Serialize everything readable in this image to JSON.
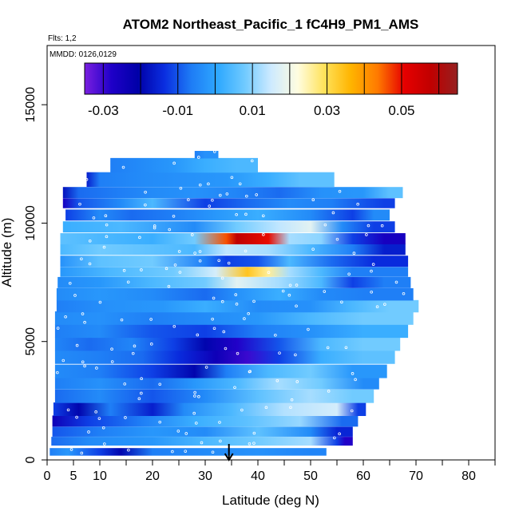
{
  "chart_data": {
    "type": "heatmap",
    "title": "ATOM2 Northeast_Pacific_1 fC4H9_PM1_AMS",
    "flights_note": "Flts: 1,2",
    "date_note": "MMDD: 0126,0129",
    "xlabel": "Latitude (deg N)",
    "ylabel": "Altitude (m)",
    "xlim": [
      0,
      85
    ],
    "ylim": [
      0,
      17500
    ],
    "x_tick_labels": [
      "0",
      "5",
      "10",
      "20",
      "30",
      "40",
      "50",
      "60",
      "70",
      "80"
    ],
    "y_tick_labels": [
      "0",
      "5000",
      "10000",
      "15000"
    ],
    "colorbar": {
      "range": [
        -0.035,
        0.065
      ],
      "tick_labels": [
        "-0.03",
        "-0.01",
        "0.01",
        "0.03",
        "0.05"
      ],
      "tick_values": [
        -0.03,
        -0.01,
        0.01,
        0.03,
        0.05
      ],
      "colors": [
        "#7a1fe0",
        "#1f00c8",
        "#0000a8",
        "#0a2ee0",
        "#1e7cf5",
        "#2ea8ff",
        "#6fcaff",
        "#cdeaff",
        "#fffde0",
        "#ffe25a",
        "#ffb400",
        "#ff7a00",
        "#e60000",
        "#c00000",
        "#952020"
      ]
    },
    "arrow_latitude": 34.5,
    "bands": [
      {
        "alt": 350,
        "h": 300,
        "lat_min": 0.5,
        "lat_max": 53,
        "segments": [
          [
            0.5,
            -0.006
          ],
          [
            4,
            -0.002
          ],
          [
            10,
            -0.012
          ],
          [
            14,
            -0.02
          ],
          [
            20,
            -0.006
          ],
          [
            30,
            -0.004
          ],
          [
            40,
            -0.003
          ],
          [
            50,
            -0.005
          ]
        ]
      },
      {
        "alt": 800,
        "h": 350,
        "lat_min": 0.8,
        "lat_max": 58,
        "segments": [
          [
            0.8,
            -0.008
          ],
          [
            8,
            -0.004
          ],
          [
            20,
            -0.002
          ],
          [
            30,
            0.004
          ],
          [
            40,
            0.008
          ],
          [
            50,
            0.012
          ],
          [
            55,
            -0.012
          ],
          [
            56.5,
            -0.028
          ]
        ]
      },
      {
        "alt": 1200,
        "h": 400,
        "lat_min": 1,
        "lat_max": 58,
        "segments": [
          [
            1,
            -0.01
          ],
          [
            10,
            -0.006
          ],
          [
            20,
            -0.002
          ],
          [
            30,
            -0.004
          ],
          [
            40,
            0.006
          ],
          [
            50,
            -0.004
          ],
          [
            55,
            -0.015
          ]
        ]
      },
      {
        "alt": 1650,
        "h": 450,
        "lat_min": 1,
        "lat_max": 59,
        "segments": [
          [
            1,
            -0.024
          ],
          [
            8,
            -0.012
          ],
          [
            18,
            -0.006
          ],
          [
            28,
            0.002
          ],
          [
            38,
            0.006
          ],
          [
            48,
            0.011
          ],
          [
            56,
            -0.008
          ]
        ]
      },
      {
        "alt": 2150,
        "h": 550,
        "lat_min": 1.2,
        "lat_max": 60.5,
        "segments": [
          [
            1.2,
            -0.012
          ],
          [
            6,
            -0.02
          ],
          [
            12,
            -0.006
          ],
          [
            20,
            -0.016
          ],
          [
            26,
            -0.004
          ],
          [
            35,
            0.004
          ],
          [
            45,
            0.013
          ],
          [
            55,
            0.016
          ],
          [
            59,
            -0.012
          ]
        ]
      },
      {
        "alt": 2700,
        "h": 550,
        "lat_min": 1.5,
        "lat_max": 62,
        "segments": [
          [
            1.5,
            -0.008
          ],
          [
            10,
            -0.004
          ],
          [
            20,
            -0.01
          ],
          [
            30,
            -0.004
          ],
          [
            40,
            0.006
          ],
          [
            50,
            0.012
          ],
          [
            58,
            0.008
          ]
        ]
      },
      {
        "alt": 3250,
        "h": 500,
        "lat_min": 1.5,
        "lat_max": 63,
        "segments": [
          [
            1.5,
            -0.006
          ],
          [
            10,
            -0.003
          ],
          [
            20,
            -0.008
          ],
          [
            28,
            -0.002
          ],
          [
            36,
            0.004
          ],
          [
            44,
            0.012
          ],
          [
            52,
            0.008
          ],
          [
            60,
            -0.004
          ]
        ]
      },
      {
        "alt": 3750,
        "h": 550,
        "lat_min": 1.5,
        "lat_max": 64.5,
        "segments": [
          [
            1.5,
            -0.004
          ],
          [
            10,
            -0.006
          ],
          [
            20,
            -0.012
          ],
          [
            28,
            -0.02
          ],
          [
            34,
            -0.006
          ],
          [
            42,
            0.004
          ],
          [
            50,
            0.008
          ],
          [
            58,
            -0.002
          ]
        ]
      },
      {
        "alt": 4350,
        "h": 550,
        "lat_min": 1.5,
        "lat_max": 66,
        "segments": [
          [
            1.5,
            -0.004
          ],
          [
            10,
            -0.006
          ],
          [
            18,
            -0.008
          ],
          [
            25,
            -0.014
          ],
          [
            32,
            -0.024
          ],
          [
            38,
            -0.03
          ],
          [
            44,
            -0.012
          ],
          [
            52,
            0.002
          ],
          [
            60,
            0.006
          ]
        ]
      },
      {
        "alt": 4900,
        "h": 550,
        "lat_min": 1.5,
        "lat_max": 67,
        "segments": [
          [
            1.5,
            -0.005
          ],
          [
            8,
            -0.008
          ],
          [
            16,
            -0.005
          ],
          [
            24,
            -0.012
          ],
          [
            30,
            -0.02
          ],
          [
            36,
            -0.028
          ],
          [
            44,
            -0.01
          ],
          [
            52,
            0.004
          ],
          [
            60,
            0.008
          ]
        ]
      },
      {
        "alt": 5450,
        "h": 550,
        "lat_min": 1.5,
        "lat_max": 68.5,
        "segments": [
          [
            1.5,
            -0.006
          ],
          [
            10,
            -0.004
          ],
          [
            20,
            -0.01
          ],
          [
            30,
            -0.012
          ],
          [
            40,
            -0.006
          ],
          [
            50,
            -0.003
          ],
          [
            60,
            0.002
          ]
        ]
      },
      {
        "alt": 6000,
        "h": 550,
        "lat_min": 1.5,
        "lat_max": 69.5,
        "segments": [
          [
            1.5,
            -0.004
          ],
          [
            10,
            -0.003
          ],
          [
            20,
            -0.006
          ],
          [
            30,
            -0.004
          ],
          [
            40,
            -0.002
          ],
          [
            50,
            0.004
          ],
          [
            60,
            0.008
          ]
        ]
      },
      {
        "alt": 6500,
        "h": 500,
        "lat_min": 1.8,
        "lat_max": 70.5,
        "segments": [
          [
            1.8,
            -0.006
          ],
          [
            12,
            -0.003
          ],
          [
            22,
            -0.002
          ],
          [
            30,
            0.002
          ],
          [
            40,
            -0.004
          ],
          [
            50,
            -0.003
          ],
          [
            58,
            0.004
          ],
          [
            65,
            0.008
          ]
        ]
      },
      {
        "alt": 7000,
        "h": 500,
        "lat_min": 1.8,
        "lat_max": 69.5,
        "segments": [
          [
            1.8,
            -0.004
          ],
          [
            10,
            -0.002
          ],
          [
            20,
            -0.004
          ],
          [
            30,
            -0.008
          ],
          [
            36,
            -0.003
          ],
          [
            44,
            0.002
          ],
          [
            52,
            -0.004
          ],
          [
            60,
            -0.006
          ]
        ]
      },
      {
        "alt": 7500,
        "h": 450,
        "lat_min": 2,
        "lat_max": 69,
        "segments": [
          [
            2,
            -0.004
          ],
          [
            10,
            -0.002
          ],
          [
            20,
            0.004
          ],
          [
            30,
            0.008
          ],
          [
            36,
            0.018
          ],
          [
            44,
            0.012
          ],
          [
            52,
            0.004
          ],
          [
            58,
            -0.012
          ],
          [
            64,
            -0.006
          ]
        ]
      },
      {
        "alt": 7950,
        "h": 400,
        "lat_min": 2.5,
        "lat_max": 68.5,
        "segments": [
          [
            2.5,
            -0.002
          ],
          [
            12,
            0.004
          ],
          [
            24,
            0.008
          ],
          [
            32,
            0.016
          ],
          [
            38,
            0.034
          ],
          [
            42,
            0.026
          ],
          [
            46,
            0.012
          ],
          [
            52,
            0.004
          ],
          [
            58,
            -0.006
          ]
        ]
      },
      {
        "alt": 8400,
        "h": 450,
        "lat_min": 2.5,
        "lat_max": 68.5,
        "segments": [
          [
            2.5,
            -0.003
          ],
          [
            10,
            0.006
          ],
          [
            20,
            0.008
          ],
          [
            30,
            -0.006
          ],
          [
            34,
            -0.012
          ],
          [
            40,
            -0.01
          ],
          [
            46,
            0.004
          ],
          [
            54,
            -0.008
          ],
          [
            62,
            -0.014
          ]
        ]
      },
      {
        "alt": 8900,
        "h": 450,
        "lat_min": 2.5,
        "lat_max": 68,
        "segments": [
          [
            2.5,
            0.004
          ],
          [
            10,
            0.008
          ],
          [
            20,
            0.006
          ],
          [
            28,
            0.004
          ],
          [
            34,
            0.014
          ],
          [
            42,
            0.012
          ],
          [
            50,
            0.004
          ],
          [
            58,
            -0.006
          ],
          [
            64,
            -0.016
          ]
        ]
      },
      {
        "alt": 9350,
        "h": 450,
        "lat_min": 2.5,
        "lat_max": 68,
        "segments": [
          [
            2.5,
            0.006
          ],
          [
            10,
            0.004
          ],
          [
            20,
            0.002
          ],
          [
            28,
            0.008
          ],
          [
            34,
            0.046
          ],
          [
            36,
            0.058
          ],
          [
            42,
            0.05
          ],
          [
            46,
            0.012
          ],
          [
            52,
            0.01
          ],
          [
            58,
            -0.012
          ],
          [
            64,
            -0.026
          ]
        ]
      },
      {
        "alt": 9850,
        "h": 450,
        "lat_min": 3,
        "lat_max": 66,
        "segments": [
          [
            3,
            0.002
          ],
          [
            14,
            0.004
          ],
          [
            28,
            -0.004
          ],
          [
            36,
            0.008
          ],
          [
            44,
            0.014
          ],
          [
            50,
            0.018
          ],
          [
            56,
            -0.004
          ],
          [
            62,
            -0.012
          ]
        ]
      },
      {
        "alt": 10350,
        "h": 450,
        "lat_min": 3.5,
        "lat_max": 65,
        "segments": [
          [
            3.5,
            -0.012
          ],
          [
            10,
            -0.004
          ],
          [
            16,
            -0.008
          ],
          [
            24,
            -0.006
          ],
          [
            32,
            -0.002
          ],
          [
            40,
            0.002
          ],
          [
            50,
            -0.004
          ],
          [
            58,
            -0.012
          ],
          [
            62,
            -0.004
          ]
        ]
      },
      {
        "alt": 10850,
        "h": 400,
        "lat_min": 3,
        "lat_max": 66,
        "segments": [
          [
            3,
            -0.026
          ],
          [
            6,
            -0.01
          ],
          [
            14,
            -0.004
          ],
          [
            20,
            0.004
          ],
          [
            30,
            -0.012
          ],
          [
            38,
            -0.008
          ],
          [
            46,
            -0.004
          ],
          [
            54,
            -0.006
          ],
          [
            60,
            -0.01
          ],
          [
            64,
            -0.012
          ]
        ]
      },
      {
        "alt": 11300,
        "h": 450,
        "lat_min": 3,
        "lat_max": 67.5,
        "segments": [
          [
            3,
            -0.018
          ],
          [
            6,
            -0.008
          ],
          [
            14,
            -0.006
          ],
          [
            20,
            -0.004
          ],
          [
            28,
            -0.003
          ],
          [
            36,
            -0.005
          ],
          [
            44,
            -0.008
          ],
          [
            52,
            -0.003
          ],
          [
            60,
            -0.002
          ],
          [
            65,
            0.006
          ]
        ]
      },
      {
        "alt": 11850,
        "h": 600,
        "lat_min": 7.5,
        "lat_max": 54.5,
        "segments": [
          [
            7.5,
            -0.016
          ],
          [
            10,
            -0.006
          ],
          [
            18,
            -0.004
          ],
          [
            26,
            -0.003
          ],
          [
            34,
            -0.002
          ],
          [
            42,
            0.002
          ],
          [
            48,
            0.006
          ]
        ]
      },
      {
        "alt": 12450,
        "h": 600,
        "lat_min": 12,
        "lat_max": 40,
        "segments": [
          [
            12,
            -0.006
          ],
          [
            18,
            -0.004
          ],
          [
            24,
            -0.002
          ],
          [
            30,
            0.002
          ],
          [
            36,
            0.004
          ]
        ]
      },
      {
        "alt": 12900,
        "h": 300,
        "lat_min": 28,
        "lat_max": 32.5,
        "segments": [
          [
            28,
            -0.006
          ],
          [
            30,
            -0.003
          ]
        ]
      }
    ]
  }
}
